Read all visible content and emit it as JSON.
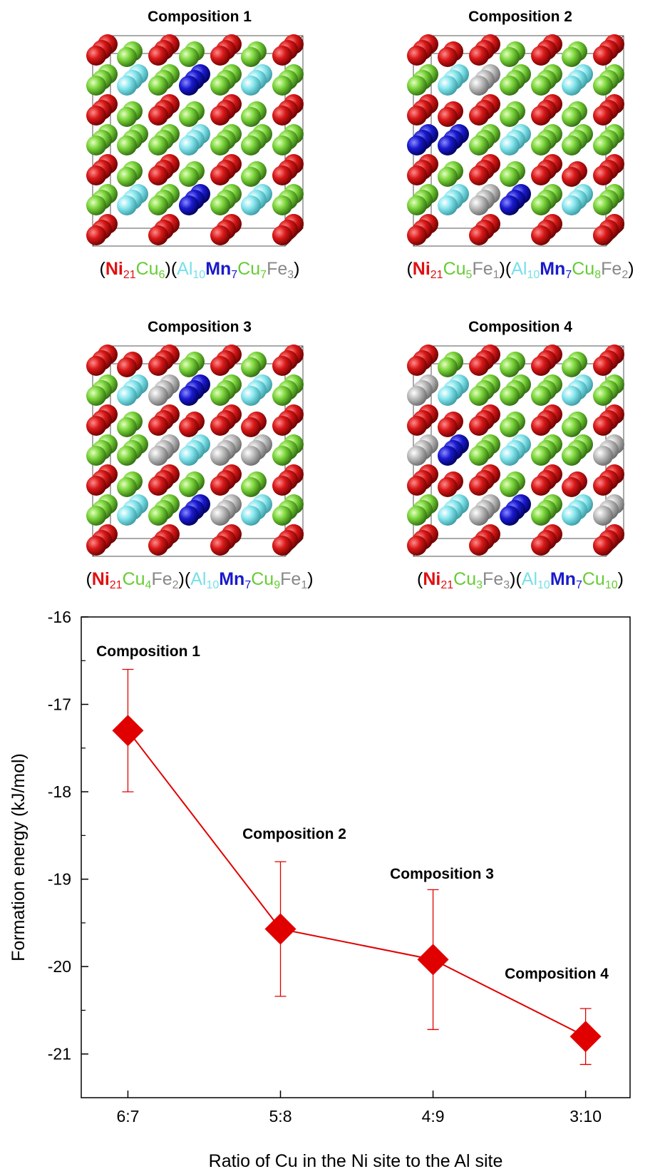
{
  "panels": [
    {
      "title": "Composition 1",
      "formula": [
        {
          "text": "(",
          "color": "#000000"
        },
        {
          "text": "Ni",
          "sub": "21",
          "color": "#e01010"
        },
        {
          "text": "Cu",
          "sub": "6",
          "color": "#66cc33"
        },
        {
          "text": ")(",
          "color": "#000000"
        },
        {
          "text": "Al",
          "sub": "10",
          "color": "#77e0e8"
        },
        {
          "text": "Mn",
          "sub": "7",
          "color": "#1a1acc"
        },
        {
          "text": "Cu",
          "sub": "7",
          "color": "#66cc33"
        },
        {
          "text": "Fe",
          "sub": "3",
          "color": "#888888"
        },
        {
          "text": ")",
          "color": "#000000"
        }
      ]
    },
    {
      "title": "Composition 2",
      "formula": [
        {
          "text": "(",
          "color": "#000000"
        },
        {
          "text": "Ni",
          "sub": "21",
          "color": "#e01010"
        },
        {
          "text": "Cu",
          "sub": "5",
          "color": "#66cc33"
        },
        {
          "text": "Fe",
          "sub": "1",
          "color": "#888888"
        },
        {
          "text": ")(",
          "color": "#000000"
        },
        {
          "text": "Al",
          "sub": "10",
          "color": "#77e0e8"
        },
        {
          "text": "Mn",
          "sub": "7",
          "color": "#1a1acc"
        },
        {
          "text": "Cu",
          "sub": "8",
          "color": "#66cc33"
        },
        {
          "text": "Fe",
          "sub": "2",
          "color": "#888888"
        },
        {
          "text": ")",
          "color": "#000000"
        }
      ]
    },
    {
      "title": "Composition 3",
      "formula": [
        {
          "text": "(",
          "color": "#000000"
        },
        {
          "text": "Ni",
          "sub": "21",
          "color": "#e01010"
        },
        {
          "text": "Cu",
          "sub": "4",
          "color": "#66cc33"
        },
        {
          "text": "Fe",
          "sub": "2",
          "color": "#888888"
        },
        {
          "text": ")(",
          "color": "#000000"
        },
        {
          "text": "Al",
          "sub": "10",
          "color": "#77e0e8"
        },
        {
          "text": "Mn",
          "sub": "7",
          "color": "#1a1acc"
        },
        {
          "text": "Cu",
          "sub": "9",
          "color": "#66cc33"
        },
        {
          "text": "Fe",
          "sub": "1",
          "color": "#888888"
        },
        {
          "text": ")",
          "color": "#000000"
        }
      ]
    },
    {
      "title": "Composition 4",
      "formula": [
        {
          "text": "(",
          "color": "#000000"
        },
        {
          "text": "Ni",
          "sub": "21",
          "color": "#e01010"
        },
        {
          "text": "Cu",
          "sub": "3",
          "color": "#66cc33"
        },
        {
          "text": "Fe",
          "sub": "3",
          "color": "#888888"
        },
        {
          "text": ")(",
          "color": "#000000"
        },
        {
          "text": "Al",
          "sub": "10",
          "color": "#77e0e8"
        },
        {
          "text": "Mn",
          "sub": "7",
          "color": "#1a1acc"
        },
        {
          "text": "Cu",
          "sub": "10",
          "color": "#66cc33"
        },
        {
          "text": ")",
          "color": "#000000"
        }
      ]
    }
  ],
  "chart_data": {
    "type": "line",
    "x_label": "Ratio of Cu in the Ni site to the Al site",
    "y_label": "Formation energy (kJ/mol)",
    "categories": [
      "6:7",
      "5:8",
      "4:9",
      "3:10"
    ],
    "series": [
      {
        "color": "#e00000",
        "values": [
          -17.3,
          -19.57,
          -19.92,
          -20.8
        ],
        "errors": [
          0.7,
          0.77,
          0.8,
          0.32
        ]
      }
    ],
    "annotations": [
      "Composition 1",
      "Composition 2",
      "Composition 3",
      "Composition 4"
    ],
    "ylim": [
      -21.5,
      -16
    ],
    "yticks": [
      -21,
      -20,
      -19,
      -18,
      -17,
      -16
    ]
  }
}
